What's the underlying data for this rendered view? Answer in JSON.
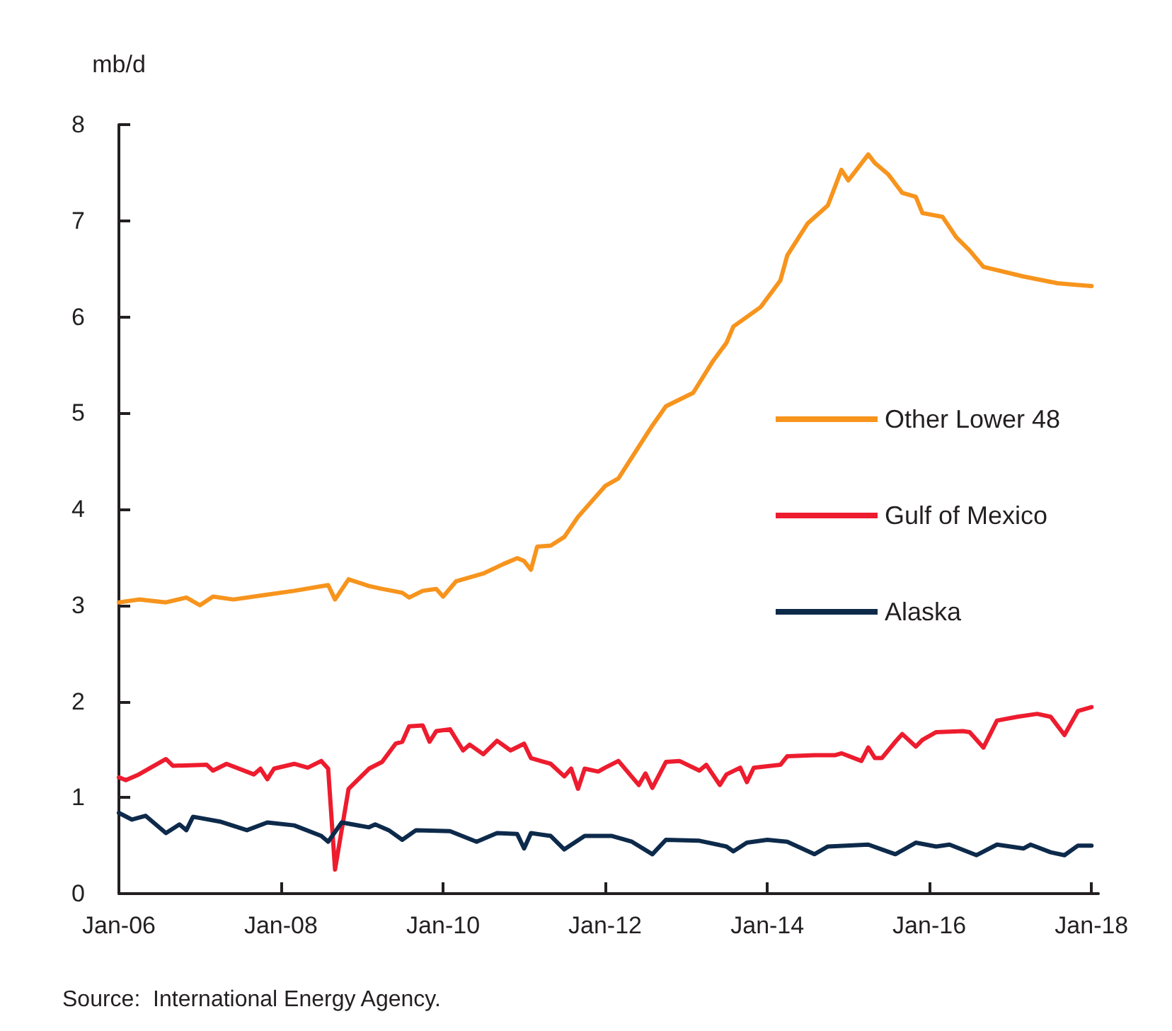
{
  "chart_data": {
    "type": "line",
    "ylabel": "mb/d",
    "xlim": [
      "2006-01",
      "2018-02"
    ],
    "ylim": [
      0,
      8
    ],
    "yticks": [
      0,
      1,
      2,
      3,
      4,
      5,
      6,
      7,
      8
    ],
    "xticks": [
      {
        "value": "2006-01",
        "label": "Jan-06"
      },
      {
        "value": "2008-01",
        "label": "Jan-08"
      },
      {
        "value": "2010-01",
        "label": "Jan-10"
      },
      {
        "value": "2012-01",
        "label": "Jan-12"
      },
      {
        "value": "2014-01",
        "label": "Jan-14"
      },
      {
        "value": "2016-01",
        "label": "Jan-16"
      },
      {
        "value": "2018-01",
        "label": "Jan-18"
      }
    ],
    "grid": false,
    "legend": "right",
    "marker": "none",
    "line_style": "solid",
    "series": [
      {
        "name": "Other Lower 48",
        "color": "#f7941d",
        "x": [
          "2006-01",
          "2006-04",
          "2006-08",
          "2006-11",
          "2007-01",
          "2007-03",
          "2007-06",
          "2007-11",
          "2008-03",
          "2008-08",
          "2008-09",
          "2008-11",
          "2009-02",
          "2009-04",
          "2009-07",
          "2009-08",
          "2009-10",
          "2009-12",
          "2010-01",
          "2010-03",
          "2010-07",
          "2010-10",
          "2010-12",
          "2011-01",
          "2011-02",
          "2011-03",
          "2011-05",
          "2011-07",
          "2011-09",
          "2012-01",
          "2012-03",
          "2012-08",
          "2012-10",
          "2013-02",
          "2013-05",
          "2013-07",
          "2013-08",
          "2013-12",
          "2014-03",
          "2014-04",
          "2014-07",
          "2014-10",
          "2014-12",
          "2015-01",
          "2015-04",
          "2015-05",
          "2015-07",
          "2015-09",
          "2015-11",
          "2015-12",
          "2016-03",
          "2016-05",
          "2016-07",
          "2016-09",
          "2017-03",
          "2017-08",
          "2018-01"
        ],
        "values": [
          3.03,
          3.06,
          3.03,
          3.08,
          3.0,
          3.09,
          3.06,
          3.11,
          3.15,
          3.21,
          3.06,
          3.27,
          3.2,
          3.17,
          3.13,
          3.08,
          3.15,
          3.17,
          3.09,
          3.25,
          3.33,
          3.43,
          3.49,
          3.46,
          3.37,
          3.61,
          3.62,
          3.71,
          3.92,
          4.24,
          4.32,
          4.87,
          5.07,
          5.21,
          5.54,
          5.73,
          5.9,
          6.1,
          6.38,
          6.64,
          6.97,
          7.16,
          7.53,
          7.42,
          7.69,
          7.6,
          7.48,
          7.29,
          7.25,
          7.08,
          7.04,
          6.83,
          6.69,
          6.52,
          6.42,
          6.35,
          6.32
        ]
      },
      {
        "name": "Gulf of Mexico",
        "color": "#ed1c2e",
        "x": [
          "2006-01",
          "2006-02",
          "2006-04",
          "2006-08",
          "2006-09",
          "2007-02",
          "2007-03",
          "2007-05",
          "2007-09",
          "2007-10",
          "2007-11",
          "2007-12",
          "2008-03",
          "2008-05",
          "2008-07",
          "2008-08",
          "2008-09",
          "2008-11",
          "2009-02",
          "2009-04",
          "2009-06",
          "2009-07",
          "2009-08",
          "2009-10",
          "2009-11",
          "2009-12",
          "2010-02",
          "2010-04",
          "2010-05",
          "2010-07",
          "2010-09",
          "2010-11",
          "2011-01",
          "2011-02",
          "2011-05",
          "2011-07",
          "2011-08",
          "2011-09",
          "2011-10",
          "2011-12",
          "2012-01",
          "2012-03",
          "2012-06",
          "2012-07",
          "2012-08",
          "2012-10",
          "2012-12",
          "2013-03",
          "2013-04",
          "2013-06",
          "2013-07",
          "2013-09",
          "2013-10",
          "2013-11",
          "2014-03",
          "2014-04",
          "2014-08",
          "2014-11",
          "2014-12",
          "2015-03",
          "2015-04",
          "2015-05",
          "2015-06",
          "2015-08",
          "2015-09",
          "2015-11",
          "2015-12",
          "2016-02",
          "2016-06",
          "2016-07",
          "2016-09",
          "2016-11",
          "2017-02",
          "2017-05",
          "2017-07",
          "2017-09",
          "2017-11",
          "2018-01"
        ],
        "values": [
          1.21,
          1.18,
          1.24,
          1.4,
          1.33,
          1.34,
          1.28,
          1.35,
          1.24,
          1.3,
          1.19,
          1.3,
          1.35,
          1.31,
          1.38,
          1.3,
          0.25,
          1.09,
          1.3,
          1.37,
          1.56,
          1.58,
          1.74,
          1.75,
          1.58,
          1.69,
          1.71,
          1.49,
          1.55,
          1.45,
          1.59,
          1.49,
          1.56,
          1.41,
          1.35,
          1.22,
          1.3,
          1.09,
          1.3,
          1.27,
          1.31,
          1.38,
          1.13,
          1.25,
          1.1,
          1.37,
          1.38,
          1.28,
          1.34,
          1.13,
          1.24,
          1.31,
          1.16,
          1.31,
          1.34,
          1.43,
          1.44,
          1.44,
          1.46,
          1.38,
          1.52,
          1.41,
          1.41,
          1.58,
          1.66,
          1.53,
          1.6,
          1.68,
          1.69,
          1.68,
          1.52,
          1.8,
          1.84,
          1.87,
          1.84,
          1.65,
          1.9,
          1.94
        ]
      },
      {
        "name": "Alaska",
        "color": "#0d2a4b",
        "x": [
          "2006-01",
          "2006-03",
          "2006-05",
          "2006-08",
          "2006-10",
          "2006-11",
          "2006-12",
          "2007-04",
          "2007-08",
          "2007-11",
          "2008-03",
          "2008-07",
          "2008-08",
          "2008-10",
          "2009-02",
          "2009-03",
          "2009-05",
          "2009-07",
          "2009-09",
          "2010-02",
          "2010-06",
          "2010-09",
          "2010-12",
          "2011-01",
          "2011-02",
          "2011-05",
          "2011-07",
          "2011-10",
          "2012-02",
          "2012-05",
          "2012-08",
          "2012-10",
          "2013-03",
          "2013-07",
          "2013-08",
          "2013-10",
          "2014-01",
          "2014-04",
          "2014-08",
          "2014-10",
          "2015-04",
          "2015-06",
          "2015-08",
          "2015-11",
          "2016-02",
          "2016-04",
          "2016-08",
          "2016-11",
          "2017-03",
          "2017-04",
          "2017-07",
          "2017-09",
          "2017-11",
          "2018-01"
        ],
        "values": [
          0.84,
          0.77,
          0.81,
          0.63,
          0.72,
          0.66,
          0.8,
          0.75,
          0.66,
          0.74,
          0.71,
          0.6,
          0.54,
          0.74,
          0.69,
          0.72,
          0.66,
          0.56,
          0.66,
          0.65,
          0.54,
          0.63,
          0.62,
          0.47,
          0.63,
          0.6,
          0.46,
          0.6,
          0.6,
          0.54,
          0.41,
          0.56,
          0.55,
          0.49,
          0.44,
          0.53,
          0.56,
          0.54,
          0.41,
          0.49,
          0.51,
          0.46,
          0.41,
          0.53,
          0.49,
          0.51,
          0.4,
          0.51,
          0.47,
          0.51,
          0.43,
          0.4,
          0.5,
          0.5
        ]
      }
    ],
    "annotations": [
      "Source:  International Energy Agency."
    ]
  }
}
